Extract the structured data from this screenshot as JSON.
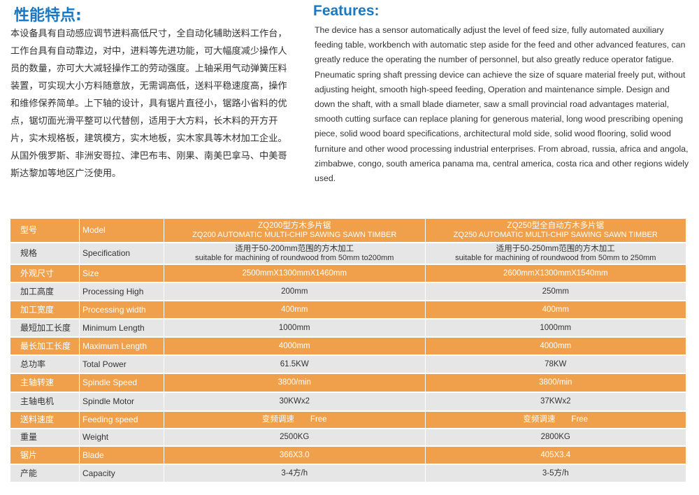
{
  "cn": {
    "title": "性能特点:",
    "body": "本设备具有自动感应调节进料高低尺寸，全自动化辅助送料工作台，工作台具有自动靠边，对中，进料等先进功能，可大幅度减少操作人员的数量，亦可大大减轻操作工的劳动强度。上轴采用气动弹簧压料装置，可实现大小方料随意放，无需调高低，送料平稳速度高，操作和维修保养简单。上下轴的设计，具有锯片直径小，锯路小省料的优点，锯切面光滑平整可以代替刨，适用于大方料，长木料的开方开片，实木规格板，建筑模方，实木地板，实木家具等木材加工企业。从国外俄罗斯、非洲安哥拉、津巴布韦、刚果、南美巴拿马、中美哥斯达黎加等地区广泛使用。"
  },
  "en": {
    "title": "Features:",
    "body": "The device has a sensor automatically adjust the level of feed size, fully automated auxiliary feeding table, workbench with automatic step aside for the feed and other advanced features, can greatly reduce the operating the number of personnel, but also greatly reduce operator fatigue. Pneumatic spring shaft pressing device can achieve the size of square material freely put, without adjusting height, smooth high-speed feeding, Operation and maintenance simple. Design and down the shaft, with a small blade diameter, saw a small provincial road  advantages material, smooth cutting surface can replace planing for generous material, long wood prescribing opening piece, solid wood board specifications, architectural mold side, solid wood flooring, solid wood furniture and other wood processing industrial enterprises. From abroad, russia, africa and angola, zimbabwe, congo, south america panama ma, central america, costa rica and other regions widely used."
  },
  "colors": {
    "orange": "#f0a04b",
    "gray": "#e6e6e6",
    "title_blue": "#1a78c2"
  },
  "table": {
    "rows": [
      {
        "cn": "型号",
        "en": "Model",
        "v1a": "ZQ200型方木多片锯",
        "v1b": "ZQ200 AUTOMATIC MULTI-CHIP SAWING SAWN TIMBER",
        "v2a": "ZQ250型全自动方木多片锯",
        "v2b": "ZQ250 AUTOMATIC MULTI-CHIP SAWING SAWN TIMBER"
      },
      {
        "cn": "规格",
        "en": "Specification",
        "v1a": "适用于50-200mm范围的方木加工",
        "v1b": "suitable for machining of roundwood from 50mm to200mm",
        "v2a": "适用于50-250mm范围的方木加工",
        "v2b": "suitable for machining of roundwood from 50mm to 250mm"
      },
      {
        "cn": "外观尺寸",
        "en": "Size",
        "v1a": "2500mmX1300mmX1460mm",
        "v2a": "2600mmX1300mmX1540mm"
      },
      {
        "cn": "加工高度",
        "en": "Processing High",
        "v1a": "200mm",
        "v2a": "250mm"
      },
      {
        "cn": "加工宽度",
        "en": "Processing width",
        "v1a": "400mm",
        "v2a": "400mm"
      },
      {
        "cn": "最短加工长度",
        "en": "Minimum Length",
        "v1a": "1000mm",
        "v2a": "1000mm"
      },
      {
        "cn": "最长加工长度",
        "en": "Maximum Length",
        "v1a": "4000mm",
        "v2a": "4000mm"
      },
      {
        "cn": "总功率",
        "en": "Total Power",
        "v1a": "61.5KW",
        "v2a": "78KW"
      },
      {
        "cn": "主轴转速",
        "en": "Spindle Speed",
        "v1a": "3800/min",
        "v2a": "3800/min"
      },
      {
        "cn": "主轴电机",
        "en": "Spindle Motor",
        "v1a": "30KWx2",
        "v2a": "37KWx2"
      },
      {
        "cn": "送料速度",
        "en": "Feeding speed",
        "v1a": "变频调速　　Free",
        "v2a": "变频调速　　Free"
      },
      {
        "cn": "重量",
        "en": "Weight",
        "v1a": "2500KG",
        "v2a": "2800KG"
      },
      {
        "cn": "锯片",
        "en": "Blade",
        "v1a": "366X3.0",
        "v2a": "405X3.4"
      },
      {
        "cn": "产能",
        "en": "Capacity",
        "v1a": "3-4方/h",
        "v2a": "3-5方/h"
      }
    ]
  }
}
